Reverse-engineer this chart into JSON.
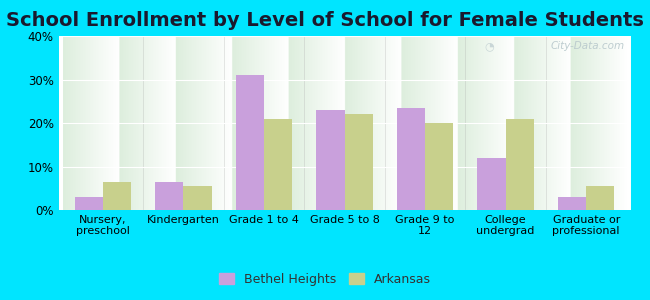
{
  "title": "School Enrollment by Level of School for Female Students",
  "categories": [
    "Nursery,\npreschool",
    "Kindergarten",
    "Grade 1 to 4",
    "Grade 5 to 8",
    "Grade 9 to\n12",
    "College\nundergrad",
    "Graduate or\nprofessional"
  ],
  "bethel_heights": [
    3,
    6.5,
    31,
    23,
    23.5,
    12,
    3
  ],
  "arkansas": [
    6.5,
    5.5,
    21,
    22,
    20,
    21,
    5.5
  ],
  "bethel_color": "#c9a0dc",
  "arkansas_color": "#c8d08c",
  "background_outer": "#00e5ff",
  "background_inner_top": "#ddeedd",
  "background_inner_bottom": "#ffffff",
  "ylim": [
    0,
    40
  ],
  "yticks": [
    0,
    10,
    20,
    30,
    40
  ],
  "ytick_labels": [
    "0%",
    "10%",
    "20%",
    "30%",
    "40%"
  ],
  "legend_labels": [
    "Bethel Heights",
    "Arkansas"
  ],
  "bar_width": 0.35,
  "title_fontsize": 14,
  "watermark": "City-Data.com"
}
